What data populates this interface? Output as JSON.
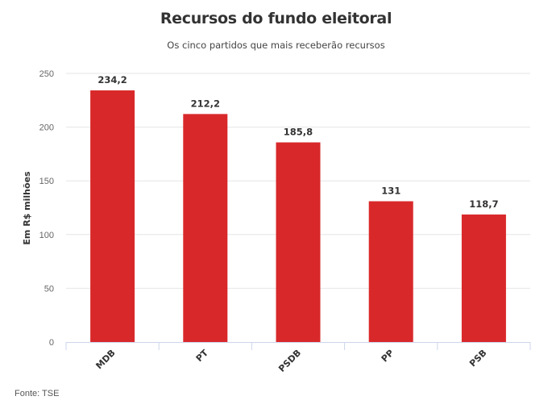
{
  "chart_data": {
    "type": "bar",
    "title": "Recursos do fundo eleitoral",
    "subtitle": "Os cinco partidos que mais receberão recursos",
    "categories": [
      "MDB",
      "PT",
      "PSDB",
      "PP",
      "PSB"
    ],
    "values": [
      234.2,
      212.2,
      185.8,
      131,
      118.7
    ],
    "value_labels": [
      "234,2",
      "212,2",
      "185,8",
      "131",
      "118,7"
    ],
    "xlabel": "",
    "ylabel": "Em R$ milhões",
    "ylim": [
      0,
      250
    ],
    "yticks": [
      0,
      50,
      100,
      150,
      200,
      250
    ],
    "ytick_labels": [
      "0",
      "50",
      "100",
      "150",
      "200",
      "250"
    ],
    "grid": true,
    "bar_color": "#d9282a",
    "source": "Fonte: TSE"
  }
}
